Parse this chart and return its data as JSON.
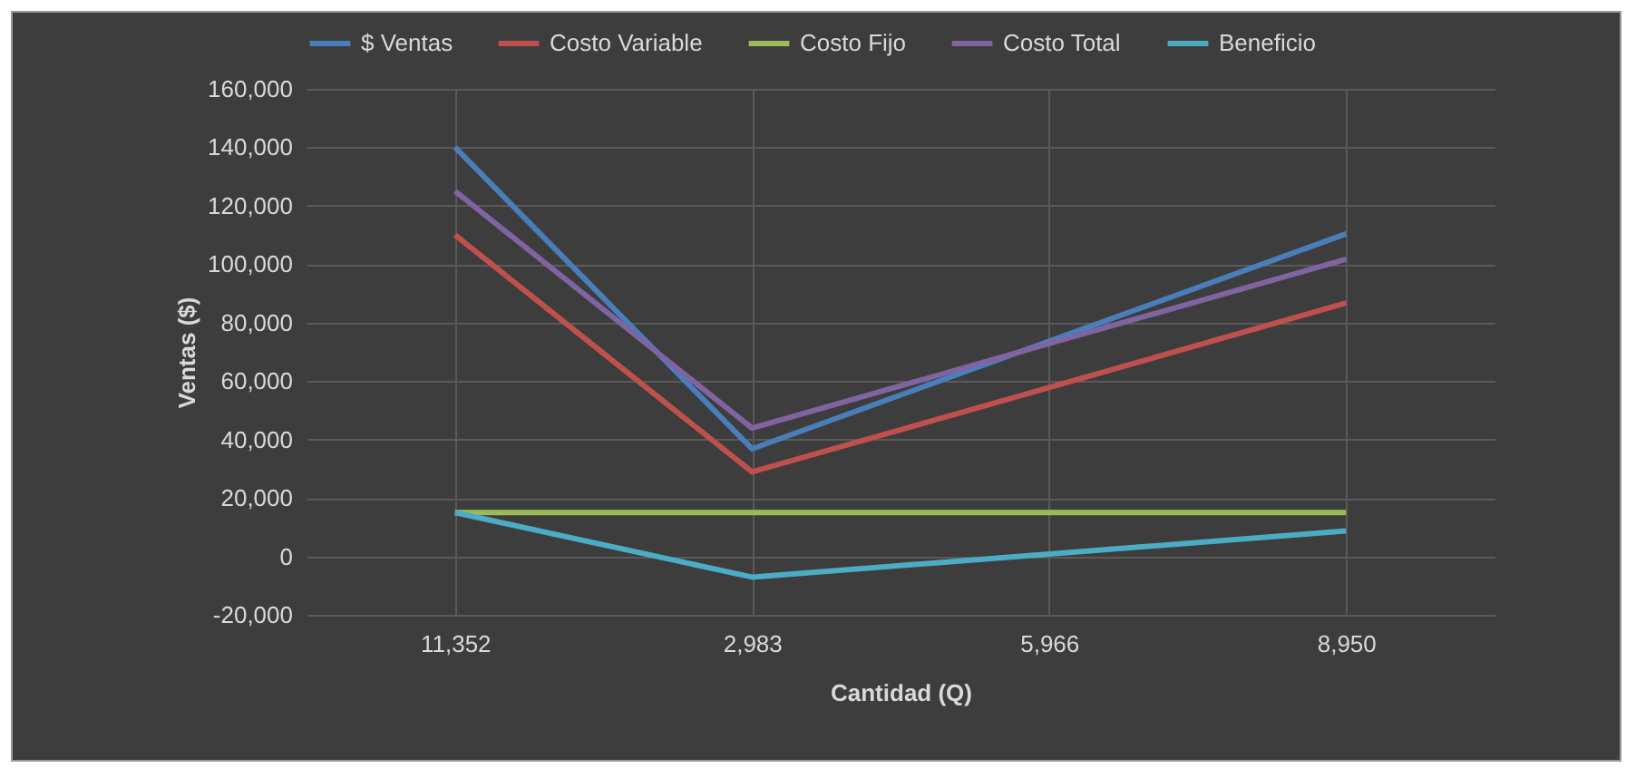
{
  "chart_data": {
    "type": "line",
    "xlabel": "Cantidad (Q)",
    "ylabel": "Ventas ($)",
    "categories": [
      "11,352",
      "2,983",
      "5,966",
      "8,950"
    ],
    "series": [
      {
        "name": "$ Ventas",
        "color": "#4a7ebb",
        "values": [
          140000,
          36800,
          73600,
          110400
        ]
      },
      {
        "name": "Costo Variable",
        "color": "#c0504d",
        "values": [
          110000,
          28900,
          57800,
          86700
        ]
      },
      {
        "name": "Costo Fijo",
        "color": "#9bbb59",
        "values": [
          15000,
          15000,
          15000,
          15000
        ]
      },
      {
        "name": "Costo Total",
        "color": "#8064a2",
        "values": [
          125000,
          43900,
          72800,
          101700
        ]
      },
      {
        "name": "Beneficio",
        "color": "#4bacc6",
        "values": [
          15000,
          -7100,
          800,
          8700
        ]
      }
    ],
    "ylim": [
      -20000,
      160000
    ],
    "yticks": [
      {
        "value": -20000,
        "label": "-20,000"
      },
      0,
      {
        "value": 20000,
        "label": "20,000"
      },
      {
        "value": 40000,
        "label": "40,000"
      },
      {
        "value": 60000,
        "label": "60,000"
      },
      {
        "value": 80000,
        "label": "80,000"
      },
      {
        "value": 100000,
        "label": "100,000"
      },
      {
        "value": 120000,
        "label": "120,000"
      },
      {
        "value": 140000,
        "label": "140,000"
      },
      {
        "value": 160000,
        "label": "160,000"
      }
    ],
    "grid": true,
    "legend": "top",
    "marker": "none"
  }
}
